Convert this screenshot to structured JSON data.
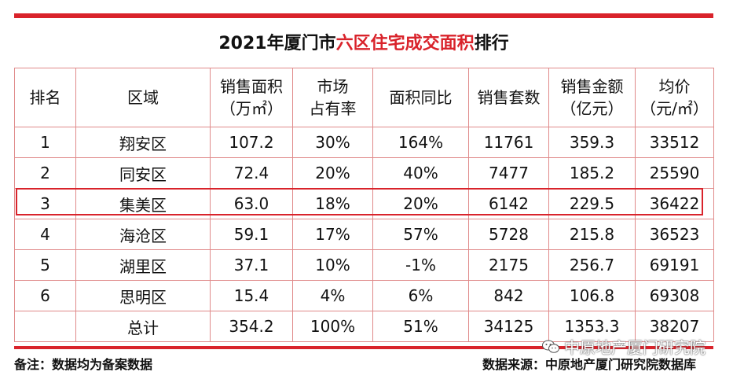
{
  "title": {
    "prefix": "2021年厦门市",
    "highlight": "六区住宅成交面积",
    "suffix": "排行"
  },
  "headers": [
    [
      "排名"
    ],
    [
      "区域"
    ],
    [
      "销售面积",
      "（万㎡）"
    ],
    [
      "市场",
      "占有率"
    ],
    [
      "面积同比"
    ],
    [
      "销售套数"
    ],
    [
      "销售金额",
      "（亿元）"
    ],
    [
      "均价",
      "（元/㎡）"
    ]
  ],
  "rows": [
    [
      "1",
      "翔安区",
      "107.2",
      "30%",
      "164%",
      "11761",
      "359.3",
      "33512"
    ],
    [
      "2",
      "同安区",
      "72.4",
      "20%",
      "40%",
      "7477",
      "185.2",
      "25590"
    ],
    [
      "3",
      "集美区",
      "63.0",
      "18%",
      "20%",
      "6142",
      "229.5",
      "36422"
    ],
    [
      "4",
      "海沧区",
      "59.1",
      "17%",
      "57%",
      "5728",
      "215.8",
      "36523"
    ],
    [
      "5",
      "湖里区",
      "37.1",
      "10%",
      "-1%",
      "2175",
      "256.7",
      "69191"
    ],
    [
      "6",
      "思明区",
      "15.4",
      "4%",
      "6%",
      "842",
      "106.8",
      "69308"
    ],
    [
      "",
      "总计",
      "354.2",
      "100%",
      "51%",
      "34125",
      "1353.3",
      "38207"
    ]
  ],
  "highlighted_row_rank": "3",
  "footer": {
    "note": "备注：数据均为备案数据",
    "source": "数据来源：中原地产厦门研究院数据库",
    "wechat_account": "中原地产厦门研究院"
  },
  "colors": {
    "accent": "#d9232b"
  },
  "icons": {
    "wechat": "wechat-icon"
  }
}
